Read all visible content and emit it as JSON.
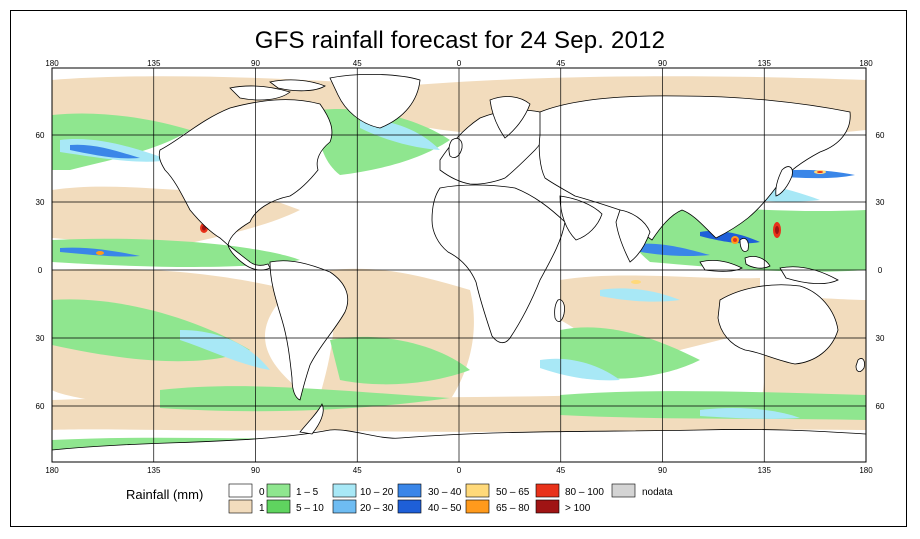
{
  "title": "GFS rainfall forecast for 24 Sep. 2012",
  "longitude_ticks": [
    "180",
    "135",
    "90",
    "45",
    "0",
    "45",
    "90",
    "135",
    "180"
  ],
  "latitude_ticks": [
    "60",
    "30",
    "0",
    "30",
    "60"
  ],
  "legend": {
    "title": "Rainfall (mm)",
    "entries": [
      {
        "label": "0",
        "color": "#ffffff"
      },
      {
        "label": "1",
        "color": "#f2dcbd"
      },
      {
        "label": "1 – 5",
        "color": "#8fe68f"
      },
      {
        "label": "5 – 10",
        "color": "#5fd45f"
      },
      {
        "label": "10 – 20",
        "color": "#a8e8f6"
      },
      {
        "label": "20 – 30",
        "color": "#6ebcf2"
      },
      {
        "label": "30 – 40",
        "color": "#3a86e8"
      },
      {
        "label": "40 – 50",
        "color": "#1e5fd8"
      },
      {
        "label": "50 – 65",
        "color": "#ffd97a"
      },
      {
        "label": "65 – 80",
        "color": "#ff9a1c"
      },
      {
        "label": "80 – 100",
        "color": "#e8321a"
      },
      {
        "label": "> 100",
        "color": "#a01414"
      },
      {
        "label": "nodata",
        "color": "#d4d4d4"
      }
    ]
  }
}
